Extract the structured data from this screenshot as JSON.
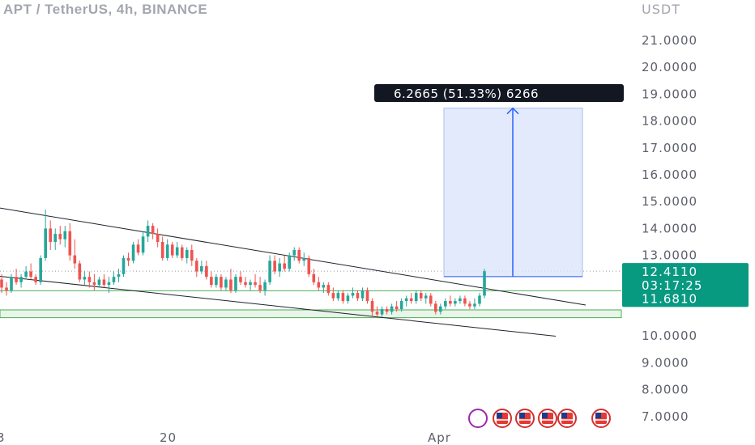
{
  "header": {
    "title": "APT / TetherUS, 4h, BINANCE",
    "currency": "USDT"
  },
  "colors": {
    "up": "#26a69a",
    "down": "#ef5350",
    "trendline": "#1e222d",
    "support": "#4caf50",
    "measure_fill": "#dce5fb",
    "measure_line": "#2962ff",
    "label_bg": "#131722",
    "price_label": "#089981"
  },
  "chart_data": {
    "type": "candlestick",
    "symbol": "APT / TetherUS",
    "timeframe": "4h",
    "exchange": "BINANCE",
    "ylim": [
      6.8,
      21.9
    ],
    "y_ticks": [
      "21.0000",
      "20.0000",
      "19.0000",
      "18.0000",
      "17.0000",
      "16.0000",
      "15.0000",
      "14.0000",
      "13.0000",
      "10.0000",
      "9.0000",
      "8.0000",
      "7.0000"
    ],
    "x_ticks": [
      "3",
      "20",
      "Apr"
    ],
    "last_price": "12.4110",
    "countdown": "03:17:25",
    "level_price": "11.6810",
    "level_value": 11.681,
    "support_zone": [
      10.68,
      10.97
    ],
    "measure": {
      "label": "6.2665 (51.33%) 6266",
      "from": 12.21,
      "to": 18.48
    },
    "trendlines": [
      {
        "name": "upper",
        "from": [
          0,
          14.76
        ],
        "to": [
          723,
          11.15
        ]
      },
      {
        "name": "lower",
        "from": [
          0,
          12.22
        ],
        "to": [
          686,
          9.99
        ]
      }
    ],
    "candles_ohlc": [
      [
        12.1,
        12.3,
        11.6,
        11.8
      ],
      [
        11.8,
        12.0,
        11.5,
        11.7
      ],
      [
        11.7,
        12.3,
        11.6,
        12.2
      ],
      [
        12.2,
        12.5,
        11.9,
        12.0
      ],
      [
        12.0,
        12.3,
        11.8,
        12.2
      ],
      [
        12.2,
        12.6,
        12.1,
        12.4
      ],
      [
        12.4,
        12.7,
        12.1,
        12.2
      ],
      [
        12.2,
        12.3,
        11.9,
        12.0
      ],
      [
        12.0,
        13.0,
        11.9,
        12.9
      ],
      [
        12.9,
        14.7,
        12.8,
        14.0
      ],
      [
        14.0,
        14.3,
        13.2,
        13.5
      ],
      [
        13.5,
        14.0,
        13.2,
        13.8
      ],
      [
        13.8,
        14.1,
        13.4,
        13.6
      ],
      [
        13.6,
        14.1,
        13.3,
        13.9
      ],
      [
        13.9,
        14.2,
        12.8,
        13.0
      ],
      [
        13.0,
        13.6,
        12.5,
        12.7
      ],
      [
        12.7,
        12.8,
        12.0,
        12.1
      ],
      [
        12.1,
        12.4,
        11.9,
        12.2
      ],
      [
        12.2,
        12.4,
        11.8,
        12.0
      ],
      [
        12.0,
        12.3,
        11.7,
        11.9
      ],
      [
        11.9,
        12.2,
        11.8,
        12.1
      ],
      [
        12.1,
        12.3,
        11.8,
        11.9
      ],
      [
        11.9,
        12.2,
        11.6,
        12.0
      ],
      [
        12.0,
        12.4,
        11.9,
        12.2
      ],
      [
        12.2,
        12.5,
        12.0,
        12.3
      ],
      [
        12.3,
        13.0,
        12.2,
        12.9
      ],
      [
        12.9,
        13.1,
        12.6,
        12.8
      ],
      [
        12.8,
        13.5,
        12.7,
        13.4
      ],
      [
        13.4,
        13.6,
        13.0,
        13.1
      ],
      [
        13.1,
        13.9,
        13.0,
        13.7
      ],
      [
        13.7,
        14.3,
        13.5,
        14.1
      ],
      [
        14.1,
        14.2,
        13.6,
        13.8
      ],
      [
        13.8,
        14.0,
        13.3,
        13.5
      ],
      [
        13.5,
        13.7,
        12.8,
        12.9
      ],
      [
        12.9,
        13.6,
        12.8,
        13.4
      ],
      [
        13.4,
        13.5,
        12.9,
        13.0
      ],
      [
        13.0,
        13.5,
        12.9,
        13.3
      ],
      [
        13.3,
        13.4,
        12.8,
        12.9
      ],
      [
        12.9,
        13.3,
        12.7,
        13.2
      ],
      [
        13.2,
        13.4,
        12.6,
        12.8
      ],
      [
        12.8,
        12.9,
        12.2,
        12.4
      ],
      [
        12.4,
        12.8,
        12.3,
        12.6
      ],
      [
        12.6,
        12.8,
        12.1,
        12.2
      ],
      [
        12.2,
        12.4,
        11.8,
        11.9
      ],
      [
        11.9,
        12.3,
        11.8,
        12.2
      ],
      [
        12.2,
        12.3,
        11.7,
        11.8
      ],
      [
        11.8,
        12.2,
        11.7,
        12.1
      ],
      [
        12.1,
        12.5,
        11.6,
        11.7
      ],
      [
        11.7,
        12.3,
        11.6,
        12.2
      ],
      [
        12.2,
        12.4,
        11.9,
        12.0
      ],
      [
        12.0,
        12.2,
        11.8,
        11.9
      ],
      [
        11.9,
        12.1,
        11.7,
        12.0
      ],
      [
        12.0,
        12.3,
        11.8,
        11.9
      ],
      [
        11.9,
        12.2,
        11.6,
        11.7
      ],
      [
        11.7,
        12.1,
        11.5,
        12.0
      ],
      [
        12.0,
        13.0,
        11.9,
        12.8
      ],
      [
        12.8,
        13.0,
        12.3,
        12.4
      ],
      [
        12.4,
        12.9,
        12.2,
        12.7
      ],
      [
        12.7,
        13.0,
        12.4,
        12.5
      ],
      [
        12.5,
        13.1,
        12.4,
        13.0
      ],
      [
        13.0,
        13.3,
        12.8,
        13.2
      ],
      [
        13.2,
        13.3,
        12.7,
        12.8
      ],
      [
        12.8,
        13.1,
        12.6,
        12.9
      ],
      [
        12.9,
        13.0,
        12.2,
        12.3
      ],
      [
        12.3,
        12.5,
        11.9,
        12.0
      ],
      [
        12.0,
        12.2,
        11.7,
        11.8
      ],
      [
        11.8,
        12.0,
        11.6,
        11.9
      ],
      [
        11.9,
        12.0,
        11.5,
        11.6
      ],
      [
        11.6,
        11.8,
        11.3,
        11.4
      ],
      [
        11.4,
        11.7,
        11.3,
        11.6
      ],
      [
        11.6,
        11.7,
        11.2,
        11.3
      ],
      [
        11.3,
        11.6,
        11.2,
        11.5
      ],
      [
        11.5,
        11.8,
        11.4,
        11.6
      ],
      [
        11.6,
        11.7,
        11.3,
        11.4
      ],
      [
        11.4,
        11.8,
        11.3,
        11.7
      ],
      [
        11.7,
        11.8,
        11.2,
        11.3
      ],
      [
        11.3,
        11.4,
        10.7,
        10.9
      ],
      [
        10.9,
        11.1,
        10.7,
        10.8
      ],
      [
        10.8,
        11.1,
        10.7,
        11.0
      ],
      [
        11.0,
        11.1,
        10.8,
        10.9
      ],
      [
        10.9,
        11.2,
        10.8,
        11.1
      ],
      [
        11.1,
        11.3,
        10.9,
        11.0
      ],
      [
        11.0,
        11.4,
        10.9,
        11.3
      ],
      [
        11.3,
        11.5,
        11.1,
        11.4
      ],
      [
        11.4,
        11.6,
        11.2,
        11.3
      ],
      [
        11.3,
        11.7,
        11.2,
        11.6
      ],
      [
        11.6,
        11.7,
        11.3,
        11.4
      ],
      [
        11.4,
        11.6,
        11.2,
        11.5
      ],
      [
        11.5,
        11.6,
        11.1,
        11.2
      ],
      [
        11.2,
        11.3,
        10.8,
        10.9
      ],
      [
        10.9,
        11.2,
        10.8,
        11.1
      ],
      [
        11.1,
        11.4,
        11.0,
        11.3
      ],
      [
        11.3,
        11.5,
        11.1,
        11.2
      ],
      [
        11.2,
        11.4,
        11.1,
        11.3
      ],
      [
        11.3,
        11.5,
        11.2,
        11.4
      ],
      [
        11.4,
        11.5,
        11.1,
        11.2
      ],
      [
        11.2,
        11.3,
        11.0,
        11.1
      ],
      [
        11.1,
        11.4,
        11.0,
        11.2
      ],
      [
        11.2,
        11.6,
        11.1,
        11.5
      ],
      [
        11.5,
        12.5,
        11.4,
        12.41
      ]
    ]
  }
}
